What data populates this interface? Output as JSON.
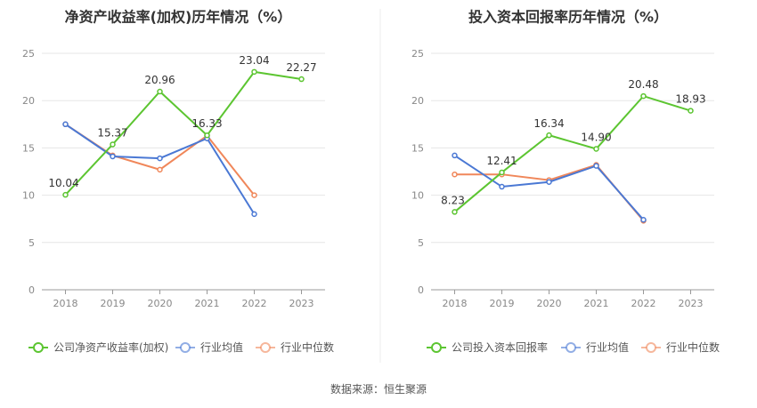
{
  "footer": {
    "source": "数据来源：恒生聚源"
  },
  "chart_data": [
    {
      "type": "line",
      "title": "净资产收益率(加权)历年情况（%）",
      "categories": [
        "2018",
        "2019",
        "2020",
        "2021",
        "2022",
        "2023"
      ],
      "ylim": [
        0,
        25
      ],
      "yticks": [
        0,
        5,
        10,
        15,
        20,
        25
      ],
      "grid": true,
      "legend_position": "bottom",
      "series": [
        {
          "name": "公司净资产收益率(加权)",
          "color": "#5cc531",
          "values": [
            10.04,
            15.37,
            20.96,
            16.33,
            23.04,
            22.27
          ],
          "labels": true
        },
        {
          "name": "行业均值",
          "color": "#4a78d4",
          "values": [
            17.5,
            14.1,
            13.9,
            16.0,
            8.0,
            null
          ],
          "labels": false
        },
        {
          "name": "行业中位数",
          "color": "#f0875a",
          "values": [
            17.5,
            14.2,
            12.7,
            16.3,
            10.0,
            null
          ],
          "labels": false
        }
      ]
    },
    {
      "type": "line",
      "title": "投入资本回报率历年情况（%）",
      "categories": [
        "2018",
        "2019",
        "2020",
        "2021",
        "2022",
        "2023"
      ],
      "ylim": [
        0,
        25
      ],
      "yticks": [
        0,
        5,
        10,
        15,
        20,
        25
      ],
      "grid": true,
      "legend_position": "bottom",
      "series": [
        {
          "name": "公司投入资本回报率",
          "color": "#5cc531",
          "values": [
            8.23,
            12.41,
            16.34,
            14.9,
            20.48,
            18.93
          ],
          "labels": true
        },
        {
          "name": "行业均值",
          "color": "#4a78d4",
          "values": [
            14.2,
            10.9,
            11.4,
            13.1,
            7.4,
            null
          ],
          "labels": false
        },
        {
          "name": "行业中位数",
          "color": "#f0875a",
          "values": [
            12.2,
            12.2,
            11.6,
            13.2,
            7.3,
            null
          ],
          "labels": false
        }
      ]
    }
  ]
}
